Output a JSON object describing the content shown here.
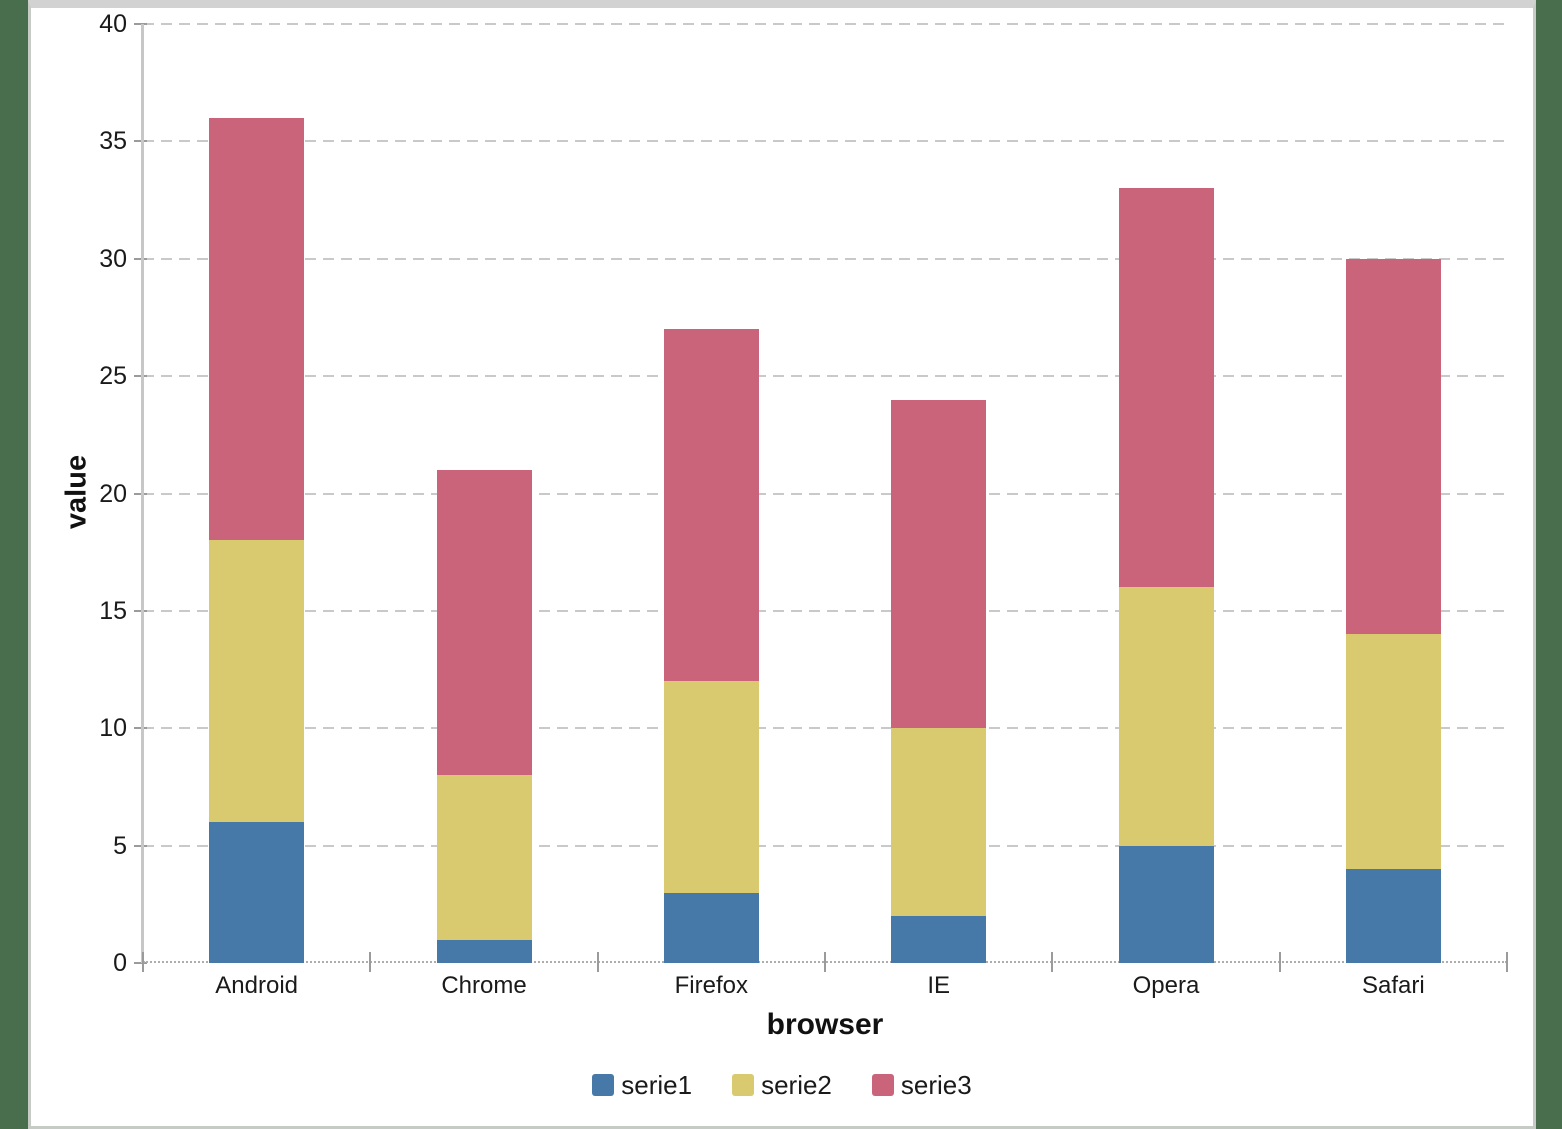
{
  "chart_data": {
    "type": "bar",
    "stacked": true,
    "title": "",
    "xlabel": "browser",
    "ylabel": "value",
    "categories": [
      "Android",
      "Chrome",
      "Firefox",
      "IE",
      "Opera",
      "Safari"
    ],
    "series": [
      {
        "name": "serie1",
        "color": "#4679A7",
        "values": [
          6,
          1,
          3,
          2,
          5,
          4
        ]
      },
      {
        "name": "serie2",
        "color": "#D9C96F",
        "values": [
          12,
          7,
          9,
          8,
          11,
          10
        ]
      },
      {
        "name": "serie3",
        "color": "#CA647A",
        "values": [
          18,
          13,
          15,
          14,
          17,
          16
        ]
      }
    ],
    "stack_totals": [
      36,
      21,
      27,
      24,
      33,
      30
    ],
    "ylim": [
      0,
      40
    ],
    "ytick_step": 5,
    "yticks": [
      0,
      5,
      10,
      15,
      20,
      25,
      30,
      35,
      40
    ],
    "grid": "horizontal-dashed",
    "legend_position": "bottom-center"
  },
  "colors": {
    "page_background": "#486E4D",
    "panel_background": "#FFFFFF",
    "panel_border": "#C6CBC6",
    "panel_top_strip": "#D2D2D2",
    "gridline": "#C9C9C9",
    "axis_line": "#C7C7C7",
    "tick_mark": "#9B9B9B",
    "text": "#1A1A1A"
  }
}
